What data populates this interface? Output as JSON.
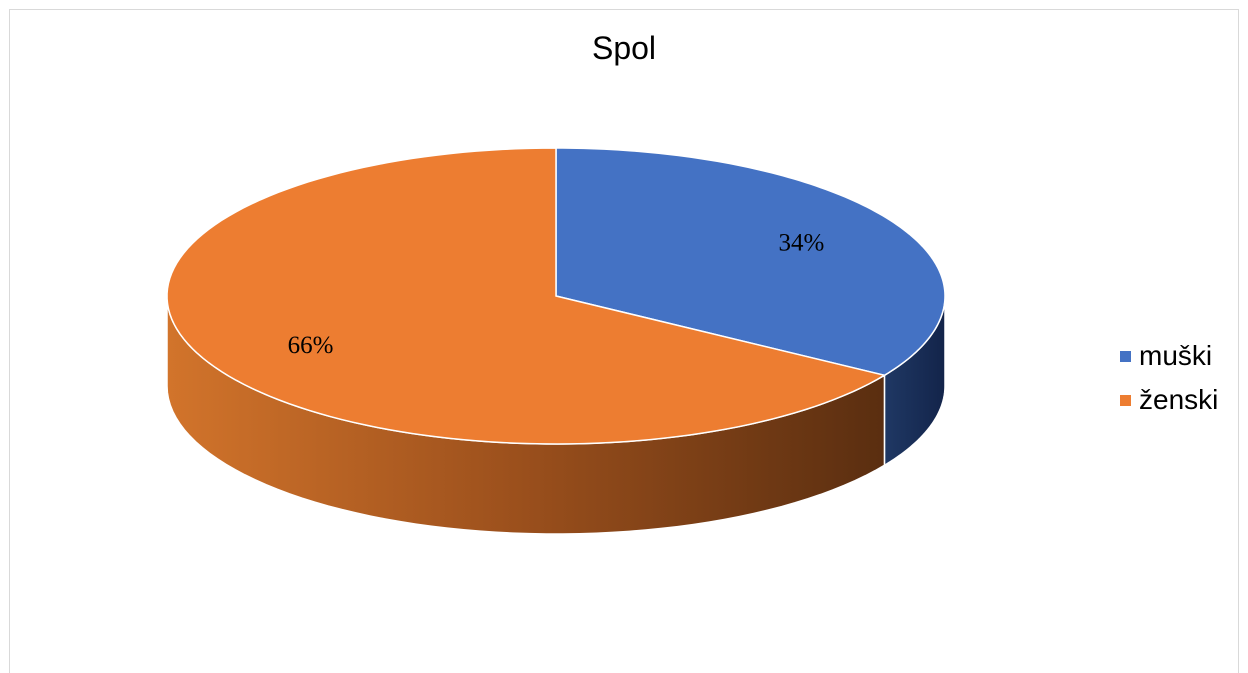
{
  "chart_data": {
    "type": "pie",
    "title": "Spol",
    "style": "3d",
    "legend_position": "right",
    "slices": [
      {
        "name": "muški",
        "value": 34,
        "label": "34%",
        "color": "#4472c4",
        "side_color": "#1f3864"
      },
      {
        "name": "ženski",
        "value": 66,
        "label": "66%",
        "color": "#ed7d31",
        "side_color": "#b8621f"
      }
    ]
  }
}
